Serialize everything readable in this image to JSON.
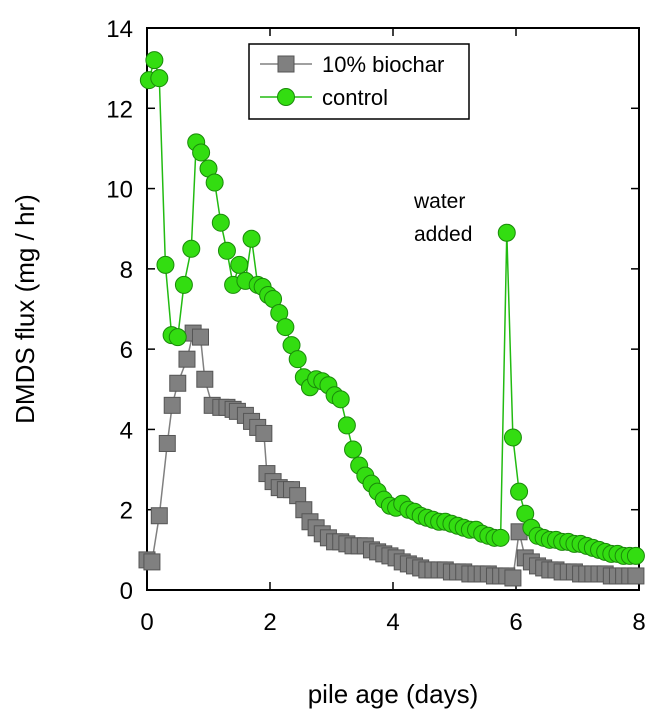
{
  "chart_data": {
    "type": "line",
    "xlabel": "pile age (days)",
    "ylabel": "DMDS flux (mg / hr)",
    "xlim": [
      0,
      8
    ],
    "ylim": [
      0,
      14
    ],
    "xticks": [
      0,
      2,
      4,
      6,
      8
    ],
    "yticks": [
      0,
      2,
      4,
      6,
      8,
      10,
      12,
      14
    ],
    "grid": false,
    "legend_position": "top-center",
    "annotation": {
      "line1": "water",
      "line2": "added"
    },
    "series": [
      {
        "name": "10% biochar",
        "marker": "square",
        "color": "#808080",
        "line_color": "#808080",
        "x": [
          0.0,
          0.08,
          0.2,
          0.33,
          0.41,
          0.5,
          0.65,
          0.75,
          0.87,
          0.94,
          1.06,
          1.2,
          1.3,
          1.4,
          1.47,
          1.6,
          1.7,
          1.8,
          1.9,
          1.95,
          2.05,
          2.15,
          2.25,
          2.35,
          2.45,
          2.55,
          2.65,
          2.75,
          2.85,
          2.95,
          3.05,
          3.15,
          3.25,
          3.35,
          3.45,
          3.55,
          3.65,
          3.75,
          3.85,
          3.95,
          4.05,
          4.15,
          4.25,
          4.35,
          4.45,
          4.55,
          4.65,
          4.75,
          4.85,
          4.95,
          5.05,
          5.15,
          5.25,
          5.35,
          5.45,
          5.55,
          5.65,
          5.75,
          5.85,
          5.95,
          6.05,
          6.15,
          6.25,
          6.35,
          6.45,
          6.55,
          6.65,
          6.75,
          6.85,
          6.95,
          7.05,
          7.15,
          7.25,
          7.35,
          7.45,
          7.55,
          7.65,
          7.75,
          7.85,
          7.95
        ],
        "y": [
          0.75,
          0.7,
          1.85,
          3.65,
          4.6,
          5.15,
          5.75,
          6.4,
          6.3,
          5.25,
          4.6,
          4.55,
          4.55,
          4.5,
          4.45,
          4.35,
          4.2,
          4.05,
          3.9,
          2.9,
          2.7,
          2.55,
          2.5,
          2.5,
          2.35,
          2.0,
          1.7,
          1.55,
          1.4,
          1.3,
          1.2,
          1.2,
          1.15,
          1.1,
          1.1,
          1.1,
          1.0,
          0.95,
          0.9,
          0.85,
          0.8,
          0.7,
          0.65,
          0.6,
          0.55,
          0.5,
          0.5,
          0.5,
          0.5,
          0.45,
          0.45,
          0.45,
          0.4,
          0.4,
          0.4,
          0.4,
          0.35,
          0.35,
          0.35,
          0.3,
          1.45,
          0.8,
          0.7,
          0.6,
          0.55,
          0.5,
          0.5,
          0.45,
          0.45,
          0.45,
          0.4,
          0.4,
          0.4,
          0.4,
          0.4,
          0.35,
          0.35,
          0.35,
          0.35,
          0.35
        ]
      },
      {
        "name": "control",
        "marker": "circle",
        "color": "#33dd11",
        "line_color": "#22bb11",
        "x": [
          0.03,
          0.12,
          0.2,
          0.3,
          0.4,
          0.5,
          0.6,
          0.72,
          0.8,
          0.88,
          1.0,
          1.1,
          1.2,
          1.3,
          1.4,
          1.5,
          1.6,
          1.7,
          1.8,
          1.88,
          1.97,
          2.05,
          2.15,
          2.25,
          2.35,
          2.45,
          2.55,
          2.65,
          2.75,
          2.85,
          2.95,
          3.05,
          3.15,
          3.25,
          3.35,
          3.45,
          3.55,
          3.65,
          3.75,
          3.85,
          3.95,
          4.05,
          4.15,
          4.25,
          4.35,
          4.45,
          4.55,
          4.65,
          4.75,
          4.85,
          4.95,
          5.05,
          5.15,
          5.25,
          5.35,
          5.45,
          5.55,
          5.65,
          5.75,
          5.85,
          5.95,
          6.05,
          6.15,
          6.25,
          6.35,
          6.45,
          6.55,
          6.65,
          6.75,
          6.85,
          6.95,
          7.05,
          7.15,
          7.25,
          7.35,
          7.45,
          7.55,
          7.65,
          7.75,
          7.85,
          7.95
        ],
        "y": [
          12.7,
          13.2,
          12.75,
          8.1,
          6.35,
          6.3,
          7.6,
          8.5,
          11.15,
          10.9,
          10.5,
          10.15,
          9.15,
          8.45,
          7.6,
          8.1,
          7.7,
          8.75,
          7.6,
          7.55,
          7.35,
          7.25,
          6.9,
          6.55,
          6.1,
          5.75,
          5.3,
          5.05,
          5.25,
          5.2,
          5.1,
          4.85,
          4.75,
          4.1,
          3.5,
          3.1,
          2.85,
          2.65,
          2.45,
          2.25,
          2.1,
          2.05,
          2.15,
          2.0,
          1.95,
          1.85,
          1.8,
          1.75,
          1.7,
          1.7,
          1.65,
          1.6,
          1.55,
          1.5,
          1.5,
          1.4,
          1.35,
          1.3,
          1.3,
          8.9,
          3.8,
          2.45,
          1.9,
          1.55,
          1.35,
          1.3,
          1.25,
          1.25,
          1.2,
          1.2,
          1.15,
          1.15,
          1.1,
          1.05,
          1.0,
          0.95,
          0.9,
          0.9,
          0.85,
          0.85,
          0.85
        ]
      }
    ]
  }
}
